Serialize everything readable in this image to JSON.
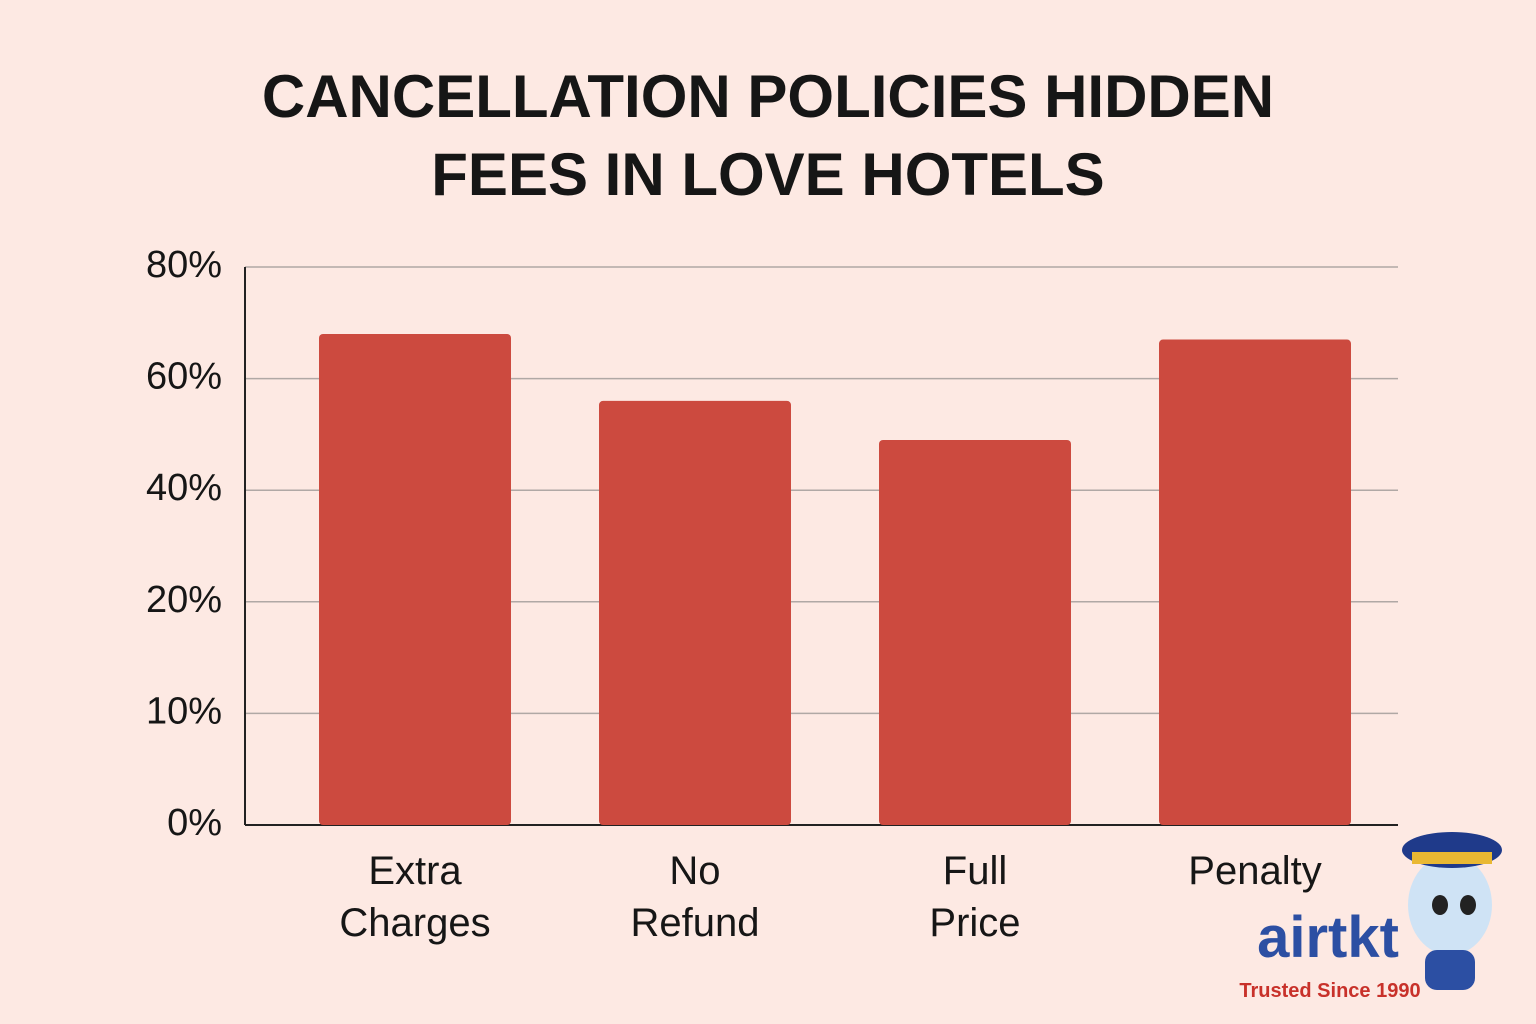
{
  "chart_data": {
    "type": "bar",
    "title": "CANCELLATION POLICIES HIDDEN FEES IN LOVE HOTELS",
    "categories": [
      "Extra Charges",
      "No Refund",
      "Full Price",
      "Penalty"
    ],
    "values": [
      68,
      56,
      49,
      67
    ],
    "color": "#cc4a3f",
    "ylim": [
      0,
      80
    ],
    "yticks": [
      {
        "value": 0,
        "label": "0%"
      },
      {
        "value": 10,
        "label": "10%"
      },
      {
        "value": 20,
        "label": "20%"
      },
      {
        "value": 40,
        "label": "40%"
      },
      {
        "value": 60,
        "label": "60%"
      },
      {
        "value": 80,
        "label": "80%"
      }
    ],
    "grid": true
  },
  "logo": {
    "text": "airtkt",
    "tagline": "Trusted Since 1990"
  }
}
